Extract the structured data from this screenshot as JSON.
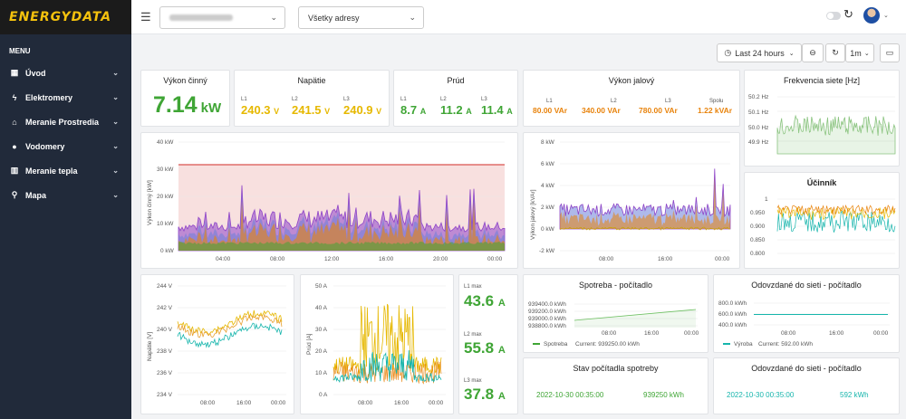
{
  "logo": "ENERGYDATA",
  "sidebar": {
    "menu_label": "MENU",
    "items": [
      {
        "label": "Úvod",
        "icon": "dashboard-icon"
      },
      {
        "label": "Elektromery",
        "icon": "lightning-icon"
      },
      {
        "label": "Meranie Prostredia",
        "icon": "factory-icon"
      },
      {
        "label": "Vodomery",
        "icon": "water-drop-icon"
      },
      {
        "label": "Meranie tepla",
        "icon": "heater-icon"
      },
      {
        "label": "Mapa",
        "icon": "map-pin-icon"
      }
    ]
  },
  "header": {
    "address_select": "Všetky adresy"
  },
  "toolbar": {
    "time_range": "Last 24 hours",
    "refresh_interval": "1m"
  },
  "power": {
    "title": "Výkon činný",
    "value": "7.14",
    "unit": "kW"
  },
  "voltage": {
    "title": "Napätie",
    "phases": [
      {
        "label": "L1",
        "value": "240.3",
        "unit": "V"
      },
      {
        "label": "L2",
        "value": "241.5",
        "unit": "V"
      },
      {
        "label": "L3",
        "value": "240.9",
        "unit": "V"
      }
    ]
  },
  "current": {
    "title": "Prúd",
    "phases": [
      {
        "label": "L1",
        "value": "8.7",
        "unit": "A"
      },
      {
        "label": "L2",
        "value": "11.2",
        "unit": "A"
      },
      {
        "label": "L3",
        "value": "11.4",
        "unit": "A"
      }
    ]
  },
  "reactive": {
    "title": "Výkon jalový",
    "phases": [
      {
        "label": "L1",
        "value": "80.00 VAr"
      },
      {
        "label": "L2",
        "value": "340.00 VAr"
      },
      {
        "label": "L3",
        "value": "780.00 VAr"
      },
      {
        "label": "Spolu",
        "value": "1.22 kVAr"
      }
    ]
  },
  "frequency": {
    "title": "Frekvencia siete [Hz]",
    "ticks": [
      "50.2 Hz",
      "50.1 Hz",
      "50.0 Hz",
      "49.9 Hz"
    ]
  },
  "power_factor": {
    "title": "Účinník",
    "ticks": [
      "1",
      "0.950",
      "0.900",
      "0.850",
      "0.800"
    ]
  },
  "power_chart": {
    "ylabel": "Výkon činný [kW]",
    "yticks": [
      "40 kW",
      "30 kW",
      "20 kW",
      "10 kW",
      "0 kW"
    ],
    "xticks": [
      "04:00",
      "08:00",
      "12:00",
      "16:00",
      "20:00",
      "00:00"
    ]
  },
  "reactive_chart": {
    "ylabel": "Výkon jalový [kVAr]",
    "yticks": [
      "8 kW",
      "6 kW",
      "4 kW",
      "2 kW",
      "0 kW",
      "-2 kW"
    ],
    "xticks": [
      "08:00",
      "16:00",
      "00:00"
    ]
  },
  "voltage_chart": {
    "ylabel": "Napätie [V]",
    "yticks": [
      "244 V",
      "242 V",
      "240 V",
      "238 V",
      "236 V",
      "234 V"
    ],
    "xticks": [
      "08:00",
      "16:00",
      "00:00"
    ]
  },
  "current_chart": {
    "ylabel": "Prúd [A]",
    "yticks": [
      "50 A",
      "40 A",
      "30 A",
      "20 A",
      "10 A",
      "0 A"
    ],
    "xticks": [
      "08:00",
      "16:00",
      "00:00"
    ]
  },
  "max_current": [
    {
      "label": "L1 max",
      "value": "43.6",
      "unit": "A"
    },
    {
      "label": "L2 max",
      "value": "55.8",
      "unit": "A"
    },
    {
      "label": "L3 max",
      "value": "37.8",
      "unit": "A"
    }
  ],
  "consumption": {
    "title": "Spotreba - počítadlo",
    "yticks": [
      "939400.0 kWh",
      "939200.0 kWh",
      "939000.0 kWh",
      "938800.0 kWh"
    ],
    "xticks": [
      "08:00",
      "16:00",
      "00:00"
    ],
    "legend": "Spotreba",
    "current": "Current: 939250.00 kWh"
  },
  "export": {
    "title": "Odovzdané do sieti - počítadlo",
    "yticks": [
      "800.0 kWh",
      "600.0 kWh",
      "400.0 kWh"
    ],
    "xticks": [
      "08:00",
      "16:00",
      "00:00"
    ],
    "legend": "Výroba",
    "current": "Current: 592.00 kWh"
  },
  "meter_state": {
    "title": "Stav počítadla spotreby",
    "date": "2022-10-30 00:35:00",
    "value": "939250 kWh"
  },
  "export_state": {
    "title": "Odovzdané do sieti - počítadlo",
    "date": "2022-10-30 00:35:00",
    "value": "592 kWh"
  },
  "colors": {
    "green": "#3fa535",
    "yellow": "#e6b800",
    "orange": "#e8830c",
    "teal": "#16b5ac",
    "purple": "#8e44c8",
    "blue": "#6b7fd8",
    "red": "#d9534f"
  }
}
